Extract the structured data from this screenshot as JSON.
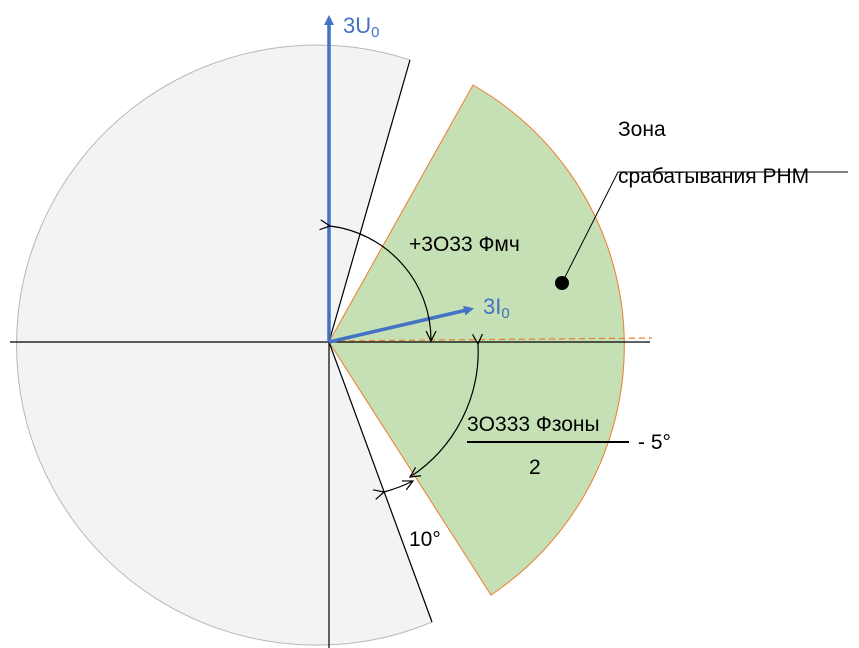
{
  "colors": {
    "sector_fill": "#f3f3f3",
    "sector_stroke": "#b8b8b8",
    "zone_fill": "#c5e0b4",
    "zone_stroke": "#ed7d31",
    "vector": "#4472c4",
    "line": "#000000"
  },
  "vectors": {
    "u0": {
      "base": "3U",
      "sub": "0"
    },
    "i0": {
      "base": "3I",
      "sub": "0"
    }
  },
  "zone_label": {
    "line1": "Зона",
    "line2": "срабатывания РНМ"
  },
  "angles": {
    "fmch": "+3О33 Фмч",
    "fzony_numerator": "3О333 Фзоны",
    "fzony_denominator": "2",
    "fzony_suffix": "- 5°",
    "ten_deg": "10°"
  }
}
